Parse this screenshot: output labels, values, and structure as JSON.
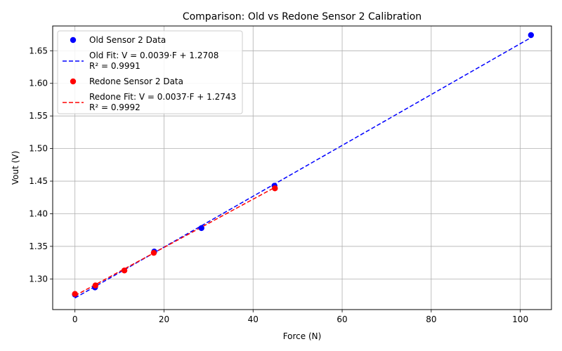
{
  "chart_data": {
    "type": "scatter",
    "title": "Comparison: Old vs Redone Sensor 2 Calibration",
    "xlabel": "Force (N)",
    "ylabel": "Vout (V)",
    "xlim": [
      -5,
      107
    ],
    "ylim": [
      1.253,
      1.688
    ],
    "xticks": [
      0,
      20,
      40,
      60,
      80,
      100
    ],
    "yticks": [
      1.3,
      1.35,
      1.4,
      1.45,
      1.5,
      1.55,
      1.6,
      1.65
    ],
    "grid": true,
    "legend_position": "top-left",
    "series": [
      {
        "name": "Old Sensor 2 Data",
        "kind": "scatter",
        "color": "#0000ff",
        "points": [
          [
            0,
            1.276
          ],
          [
            4.5,
            1.287
          ],
          [
            17.8,
            1.342
          ],
          [
            28.4,
            1.378
          ],
          [
            44.8,
            1.443
          ],
          [
            102.4,
            1.674
          ]
        ]
      },
      {
        "name": "Old Fit: V = 0.0039·F + 1.2708",
        "name_line2": "R² = 0.9991",
        "kind": "line",
        "style": "dashed",
        "color": "#0000ff",
        "slope": 0.0039,
        "intercept": 1.2708,
        "x_range": [
          0,
          102.4
        ]
      },
      {
        "name": "Redone Sensor 2 Data",
        "kind": "scatter",
        "color": "#ff0000",
        "points": [
          [
            0,
            1.277
          ],
          [
            4.6,
            1.29
          ],
          [
            11.1,
            1.313
          ],
          [
            17.7,
            1.34
          ],
          [
            44.9,
            1.439
          ]
        ]
      },
      {
        "name": "Redone Fit: V = 0.0037·F + 1.2743",
        "name_line2": "R² = 0.9992",
        "kind": "line",
        "style": "dashed",
        "color": "#ff0000",
        "slope": 0.0037,
        "intercept": 1.2743,
        "x_range": [
          0,
          44.9
        ]
      }
    ]
  }
}
